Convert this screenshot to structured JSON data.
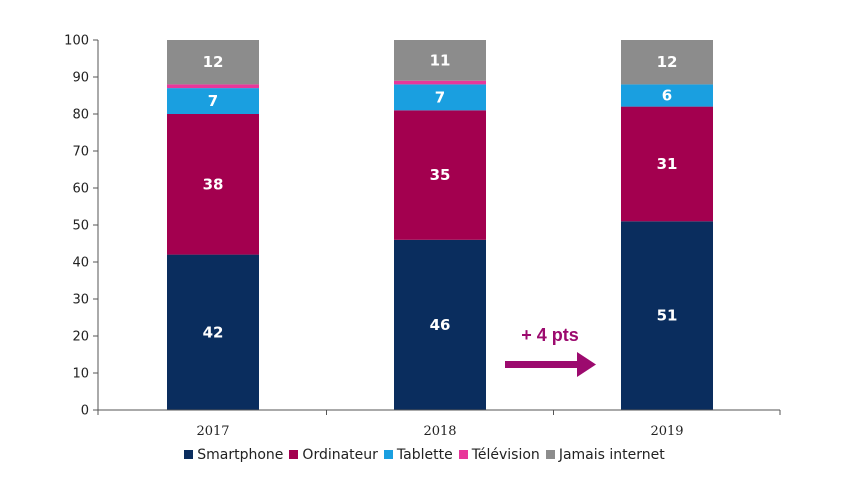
{
  "chart_data": {
    "type": "bar",
    "stacked": true,
    "categories": [
      "2017",
      "2018",
      "2019"
    ],
    "series": [
      {
        "name": "Smartphone",
        "color": "#0a2d5e",
        "values": [
          42,
          46,
          51
        ],
        "labels": [
          "42",
          "46",
          "51"
        ]
      },
      {
        "name": "Ordinateur",
        "color": "#a3004f",
        "values": [
          38,
          35,
          31
        ],
        "labels": [
          "38",
          "35",
          "31"
        ]
      },
      {
        "name": "Tablette",
        "color": "#1a9fe0",
        "values": [
          7,
          7,
          6
        ],
        "labels": [
          "7",
          "7",
          "6"
        ]
      },
      {
        "name": "Télévision",
        "color": "#e8379a",
        "values": [
          1,
          1,
          0
        ],
        "labels": [
          "",
          "",
          ""
        ]
      },
      {
        "name": "Jamais internet",
        "color": "#8c8c8c",
        "values": [
          12,
          11,
          12
        ],
        "labels": [
          "12",
          "11",
          "12"
        ]
      }
    ],
    "ylim": [
      0,
      100
    ],
    "yticks": [
      "0",
      "10",
      "20",
      "30",
      "40",
      "50",
      "60",
      "70",
      "80",
      "90",
      "100"
    ],
    "annotation": {
      "text": "+ 4 pts",
      "color": "#9c0a6e"
    },
    "legend_position": "bottom",
    "grid": false
  }
}
